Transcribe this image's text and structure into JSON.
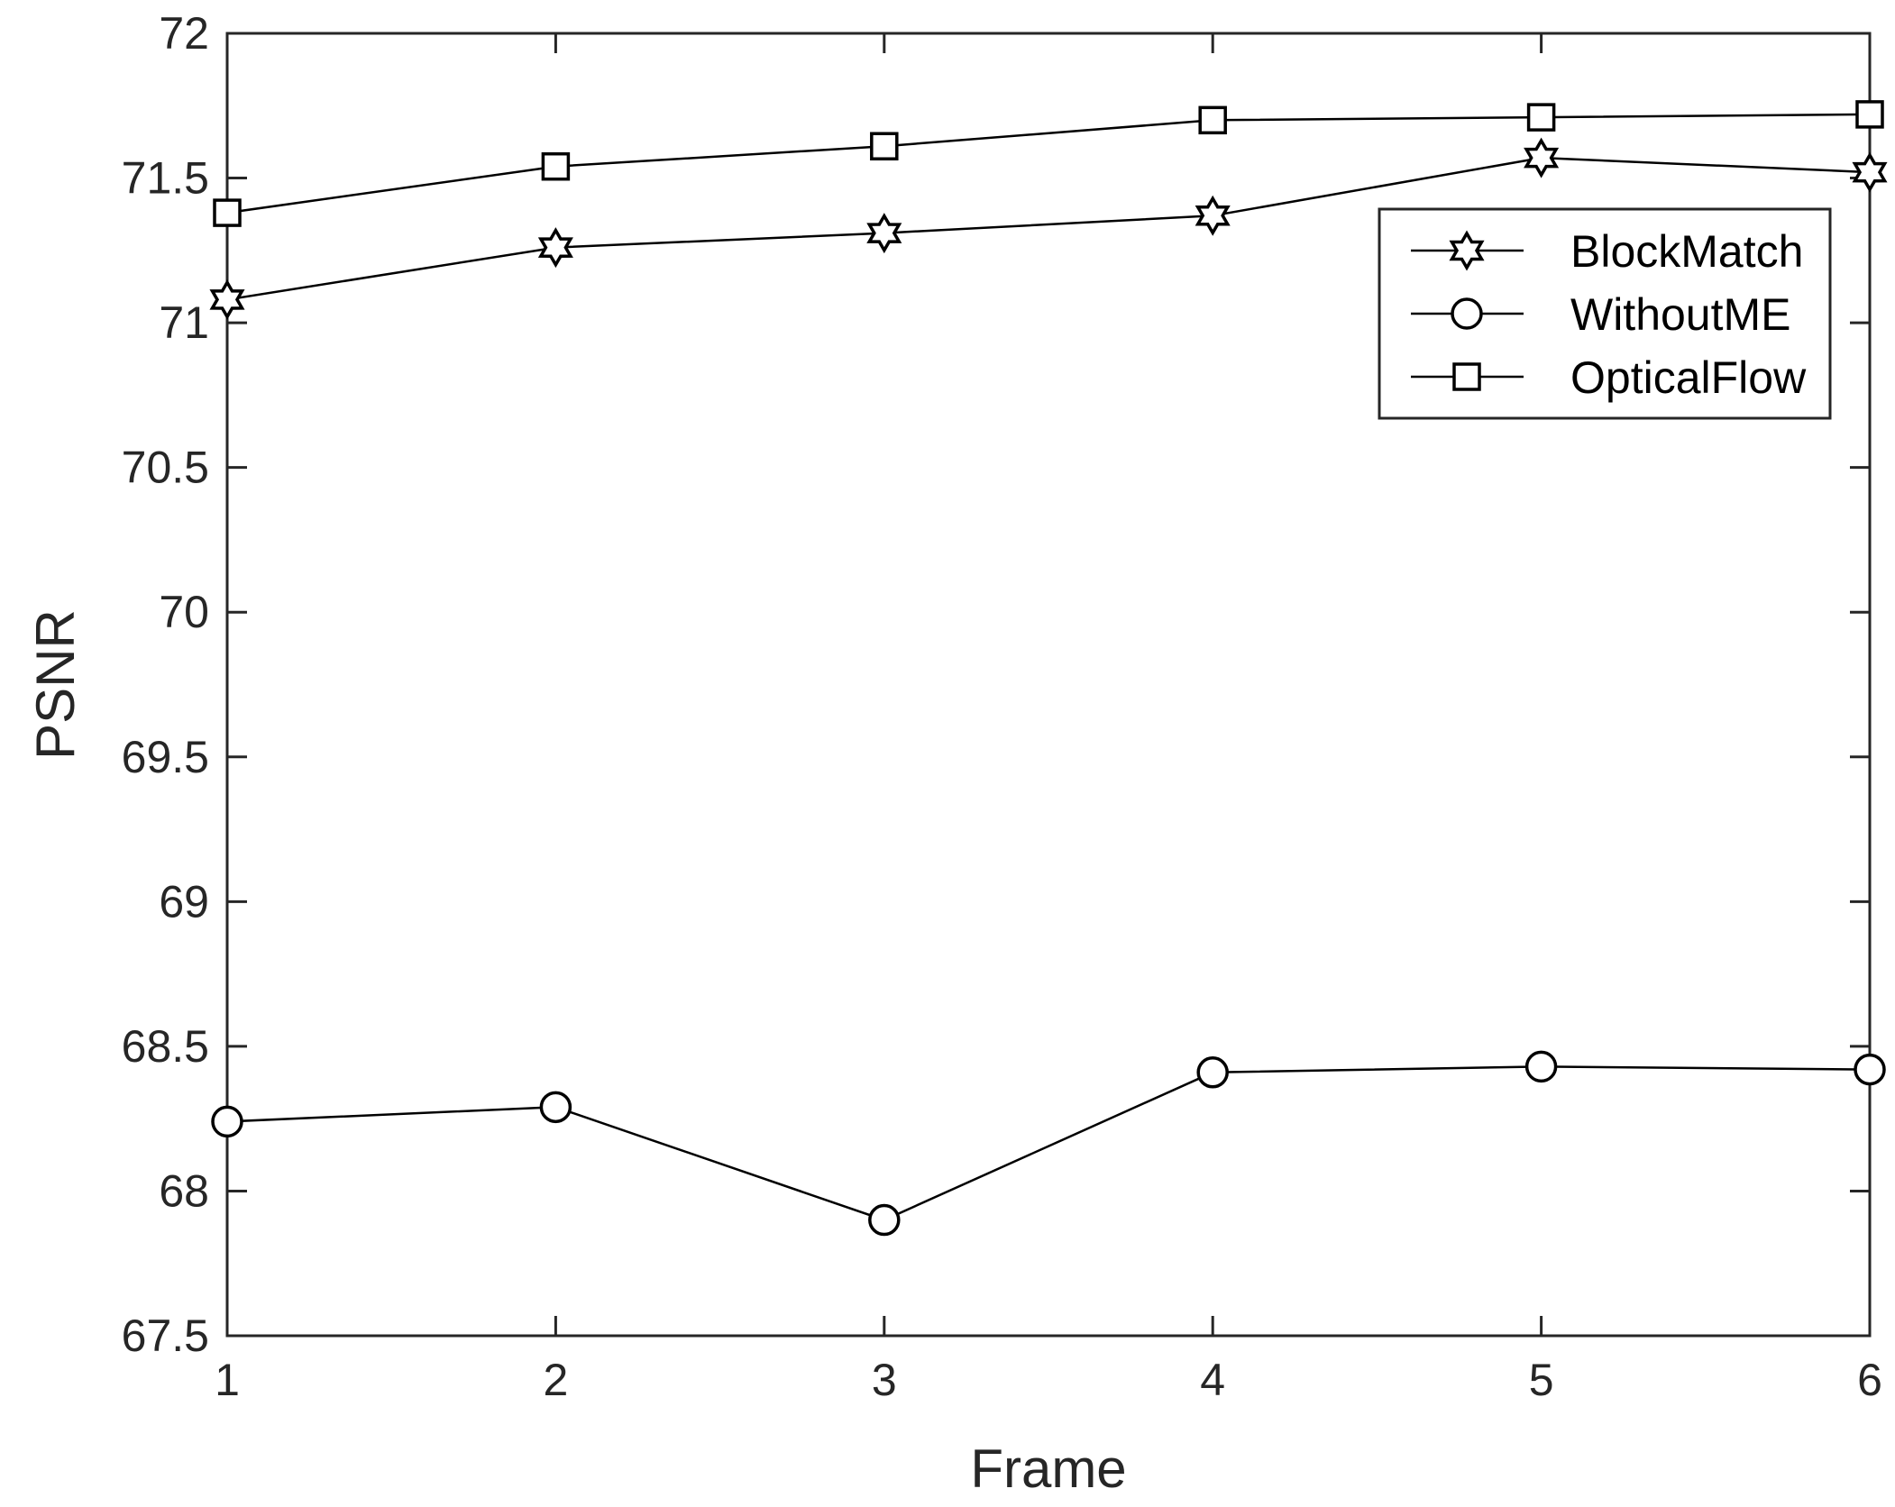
{
  "chart_data": {
    "type": "line",
    "xlabel": "Frame",
    "ylabel": "PSNR",
    "xlim": [
      1,
      6
    ],
    "ylim": [
      67.5,
      72
    ],
    "x_ticks": [
      "1",
      "2",
      "3",
      "4",
      "5",
      "6"
    ],
    "y_ticks": [
      "67.5",
      "68",
      "68.5",
      "69",
      "69.5",
      "70",
      "70.5",
      "71",
      "71.5",
      "72"
    ],
    "grid": false,
    "legend_position": "top-right",
    "x": [
      1,
      2,
      3,
      4,
      5,
      6
    ],
    "series": [
      {
        "name": "BlockMatch",
        "marker": "hexagram",
        "color": "#000000",
        "values": [
          71.08,
          71.26,
          71.31,
          71.37,
          71.57,
          71.52
        ]
      },
      {
        "name": "WithoutME",
        "marker": "circle",
        "color": "#000000",
        "values": [
          68.24,
          68.29,
          67.9,
          68.41,
          68.43,
          68.42
        ]
      },
      {
        "name": "OpticalFlow",
        "marker": "square",
        "color": "#000000",
        "values": [
          71.38,
          71.54,
          71.61,
          71.7,
          71.71,
          71.72
        ]
      }
    ]
  }
}
